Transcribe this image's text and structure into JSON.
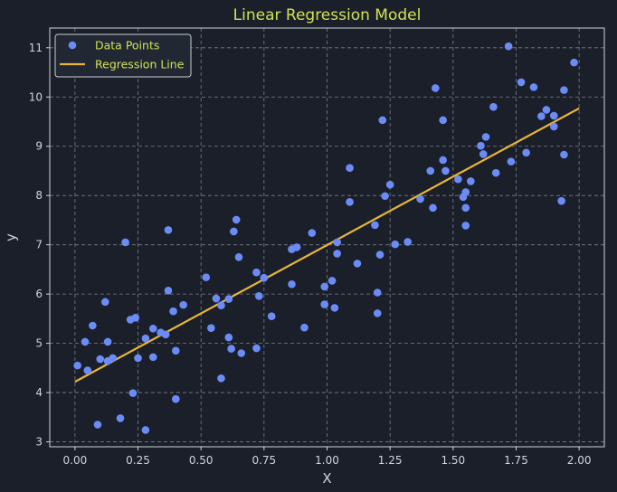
{
  "chart_data": {
    "type": "scatter",
    "title": "Linear Regression Model",
    "xlabel": "X",
    "ylabel": "y",
    "xlim": [
      -0.1,
      2.1
    ],
    "ylim": [
      2.9,
      11.4
    ],
    "xticks": [
      "0.00",
      "0.25",
      "0.50",
      "0.75",
      "1.00",
      "1.25",
      "1.50",
      "1.75",
      "2.00"
    ],
    "yticks": [
      "3",
      "4",
      "5",
      "6",
      "7",
      "8",
      "9",
      "10",
      "11"
    ],
    "grid": true,
    "legend": {
      "position": "top-left",
      "entries": [
        "Data Points",
        "Regression Line"
      ]
    },
    "colors": {
      "background": "#1b1f2a",
      "points": "#6b8cf7",
      "line": "#e8b53a",
      "title": "#cfe354",
      "legend_text": "#cfe354",
      "text": "#cfd3da",
      "grid": "#9aa0a8"
    },
    "series": [
      {
        "name": "Data Points",
        "type": "scatter",
        "points": [
          [
            0.01,
            4.55
          ],
          [
            0.04,
            5.03
          ],
          [
            0.05,
            4.45
          ],
          [
            0.07,
            5.36
          ],
          [
            0.09,
            3.35
          ],
          [
            0.1,
            4.68
          ],
          [
            0.12,
            5.84
          ],
          [
            0.13,
            5.03
          ],
          [
            0.13,
            4.64
          ],
          [
            0.15,
            4.7
          ],
          [
            0.18,
            3.48
          ],
          [
            0.2,
            7.05
          ],
          [
            0.22,
            5.48
          ],
          [
            0.23,
            3.99
          ],
          [
            0.24,
            5.52
          ],
          [
            0.25,
            4.7
          ],
          [
            0.28,
            5.1
          ],
          [
            0.28,
            3.24
          ],
          [
            0.31,
            5.3
          ],
          [
            0.31,
            4.72
          ],
          [
            0.34,
            5.22
          ],
          [
            0.36,
            5.18
          ],
          [
            0.37,
            6.07
          ],
          [
            0.37,
            7.3
          ],
          [
            0.39,
            5.65
          ],
          [
            0.4,
            4.85
          ],
          [
            0.4,
            3.87
          ],
          [
            0.43,
            5.78
          ],
          [
            0.52,
            6.34
          ],
          [
            0.54,
            5.31
          ],
          [
            0.56,
            5.91
          ],
          [
            0.58,
            5.77
          ],
          [
            0.58,
            4.29
          ],
          [
            0.61,
            5.12
          ],
          [
            0.61,
            5.9
          ],
          [
            0.62,
            4.89
          ],
          [
            0.63,
            7.27
          ],
          [
            0.64,
            7.51
          ],
          [
            0.65,
            6.75
          ],
          [
            0.66,
            4.8
          ],
          [
            0.72,
            6.44
          ],
          [
            0.72,
            4.9
          ],
          [
            0.73,
            5.96
          ],
          [
            0.75,
            6.33
          ],
          [
            0.78,
            5.55
          ],
          [
            0.86,
            6.91
          ],
          [
            0.86,
            6.2
          ],
          [
            0.88,
            6.95
          ],
          [
            0.91,
            5.32
          ],
          [
            0.94,
            7.24
          ],
          [
            0.99,
            5.79
          ],
          [
            0.99,
            6.15
          ],
          [
            1.02,
            6.27
          ],
          [
            1.03,
            5.72
          ],
          [
            1.04,
            7.05
          ],
          [
            1.04,
            6.82
          ],
          [
            1.09,
            8.56
          ],
          [
            1.09,
            7.87
          ],
          [
            1.12,
            6.62
          ],
          [
            1.19,
            7.4
          ],
          [
            1.2,
            6.03
          ],
          [
            1.2,
            5.61
          ],
          [
            1.21,
            6.8
          ],
          [
            1.22,
            9.53
          ],
          [
            1.23,
            7.99
          ],
          [
            1.25,
            8.22
          ],
          [
            1.27,
            7.01
          ],
          [
            1.32,
            7.06
          ],
          [
            1.37,
            7.93
          ],
          [
            1.41,
            8.5
          ],
          [
            1.42,
            7.75
          ],
          [
            1.43,
            10.18
          ],
          [
            1.46,
            9.53
          ],
          [
            1.46,
            8.72
          ],
          [
            1.47,
            8.5
          ],
          [
            1.52,
            8.33
          ],
          [
            1.54,
            7.97
          ],
          [
            1.55,
            8.07
          ],
          [
            1.55,
            7.75
          ],
          [
            1.55,
            7.39
          ],
          [
            1.57,
            8.29
          ],
          [
            1.61,
            9.01
          ],
          [
            1.62,
            8.84
          ],
          [
            1.63,
            9.19
          ],
          [
            1.66,
            9.8
          ],
          [
            1.67,
            8.46
          ],
          [
            1.72,
            11.03
          ],
          [
            1.73,
            8.69
          ],
          [
            1.77,
            10.3
          ],
          [
            1.79,
            8.87
          ],
          [
            1.82,
            10.2
          ],
          [
            1.85,
            9.61
          ],
          [
            1.87,
            9.74
          ],
          [
            1.9,
            9.4
          ],
          [
            1.9,
            9.62
          ],
          [
            1.93,
            7.89
          ],
          [
            1.94,
            10.14
          ],
          [
            1.94,
            8.83
          ],
          [
            1.98,
            10.7
          ]
        ]
      },
      {
        "name": "Regression Line",
        "type": "line",
        "points": [
          [
            0.0,
            4.22
          ],
          [
            2.0,
            9.77
          ]
        ]
      }
    ]
  }
}
